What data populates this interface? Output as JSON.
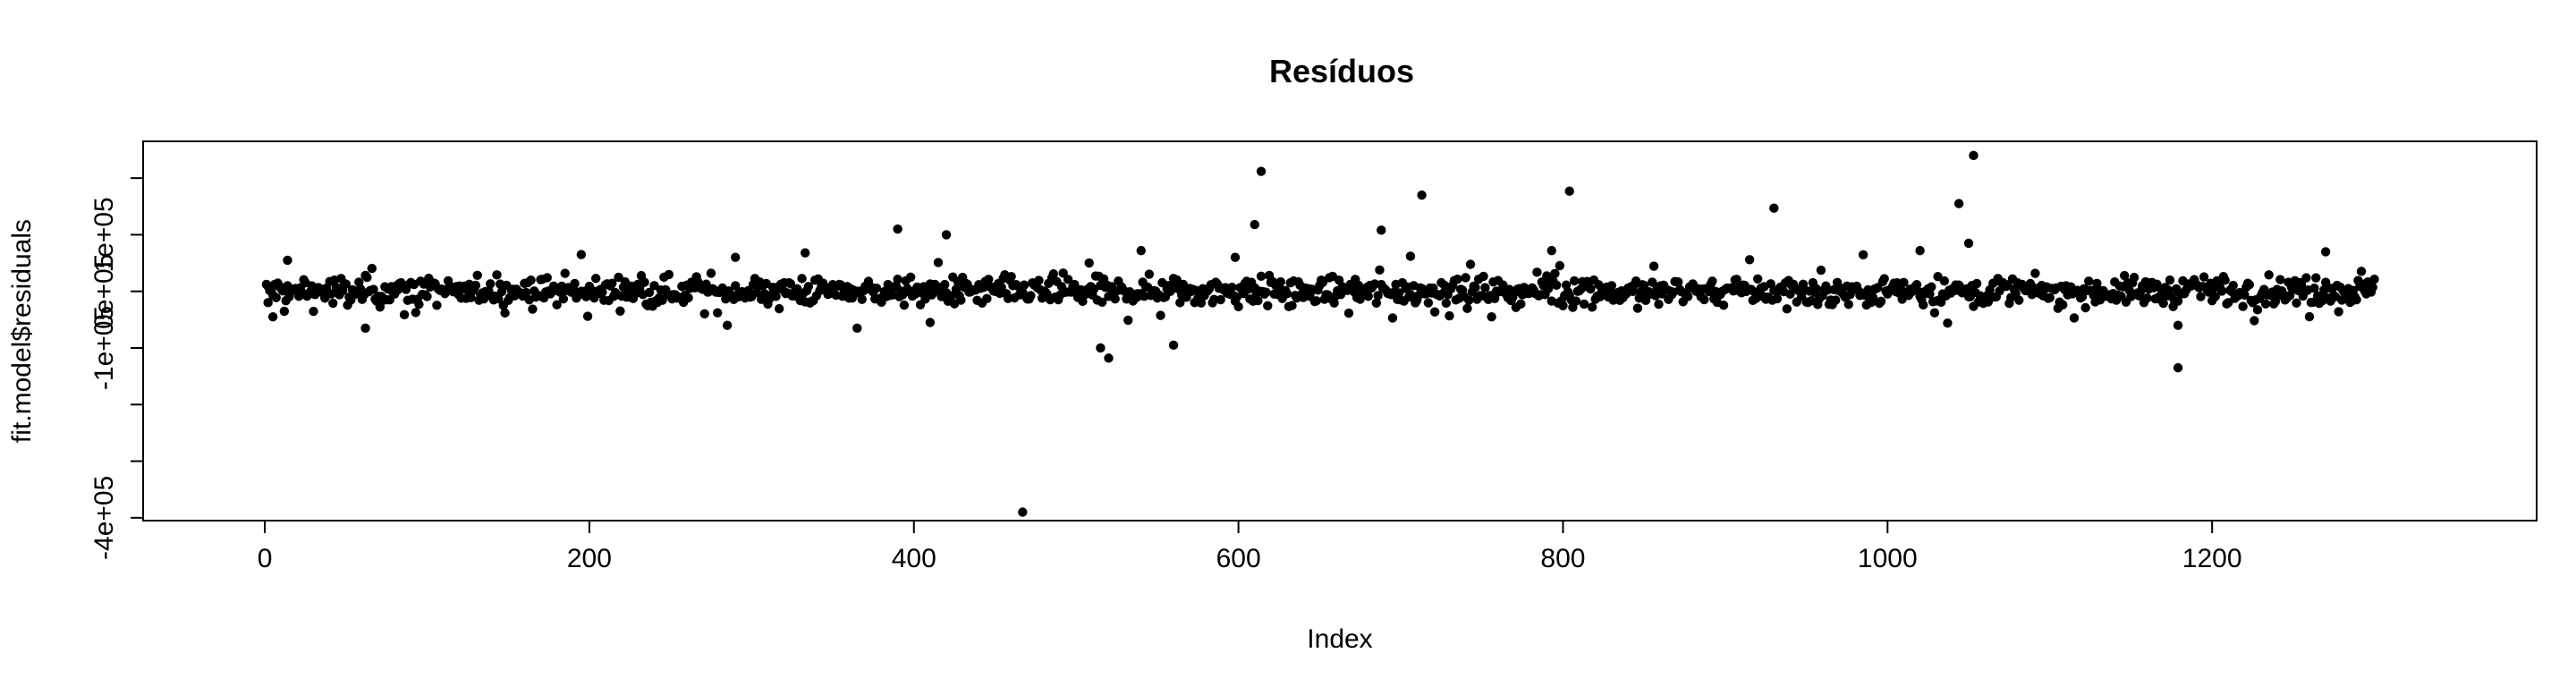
{
  "chart_data": {
    "type": "scatter",
    "title": "Resíduos",
    "xlabel": "Index",
    "ylabel": "fit.model$residuals",
    "xlim": [
      -75,
      1400
    ],
    "ylim": [
      -405000,
      265000
    ],
    "x_ticks": [
      0,
      200,
      400,
      600,
      800,
      1000,
      1200
    ],
    "x_tick_labels": [
      "0",
      "200",
      "400",
      "600",
      "800",
      "1000",
      "1200"
    ],
    "y_ticks": [
      -400000,
      -300000,
      -200000,
      -100000,
      0,
      100000,
      200000
    ],
    "y_tick_labels": [
      "-4e+05",
      "",
      "",
      "-1e+05",
      "0e+05",
      "1e+05",
      ""
    ],
    "grid": false,
    "legend": "none",
    "point_color": "#000000",
    "n_points": 1300,
    "baseline_spread": 20000,
    "notable_points": [
      {
        "x": 2,
        "y": -20000
      },
      {
        "x": 5,
        "y": -45000
      },
      {
        "x": 14,
        "y": 55000
      },
      {
        "x": 62,
        "y": -65000
      },
      {
        "x": 195,
        "y": 65000
      },
      {
        "x": 285,
        "y": -60000
      },
      {
        "x": 290,
        "y": 60000
      },
      {
        "x": 333,
        "y": 68000
      },
      {
        "x": 365,
        "y": -65000
      },
      {
        "x": 390,
        "y": 110000
      },
      {
        "x": 410,
        "y": -55000
      },
      {
        "x": 420,
        "y": 100000
      },
      {
        "x": 467,
        "y": -390000
      },
      {
        "x": 540,
        "y": 72000
      },
      {
        "x": 515,
        "y": -100000
      },
      {
        "x": 520,
        "y": -118000
      },
      {
        "x": 560,
        "y": -95000
      },
      {
        "x": 598,
        "y": 60000
      },
      {
        "x": 610,
        "y": 118000
      },
      {
        "x": 614,
        "y": 212000
      },
      {
        "x": 688,
        "y": 108000
      },
      {
        "x": 706,
        "y": 62000
      },
      {
        "x": 713,
        "y": 170000
      },
      {
        "x": 793,
        "y": 72000
      },
      {
        "x": 804,
        "y": 177000
      },
      {
        "x": 930,
        "y": 147000
      },
      {
        "x": 1020,
        "y": 72000
      },
      {
        "x": 1044,
        "y": 155000
      },
      {
        "x": 1053,
        "y": 240000
      },
      {
        "x": 1050,
        "y": 85000
      },
      {
        "x": 1179,
        "y": -60000
      },
      {
        "x": 1179,
        "y": -135000
      },
      {
        "x": 1270,
        "y": 70000
      }
    ]
  }
}
